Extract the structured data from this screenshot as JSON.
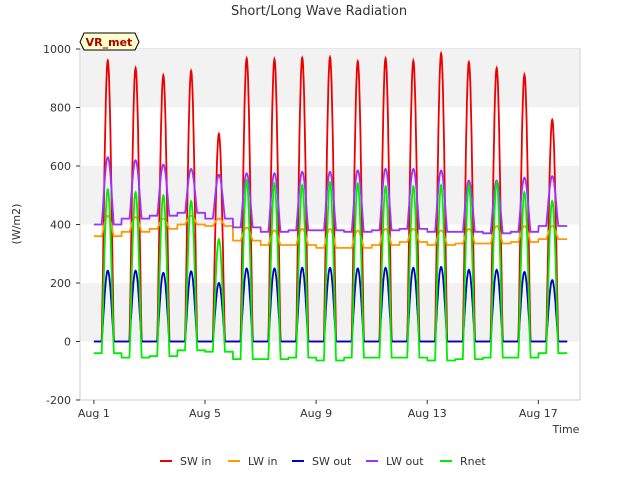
{
  "chart_data": {
    "type": "line",
    "title": "Short/Long Wave Radiation",
    "xlabel": "Time",
    "ylabel": "(W/m2)",
    "site_label": "VR_met",
    "xlim": [
      0.5,
      18.5
    ],
    "ylim": [
      -200,
      1000
    ],
    "yticks": [
      -200,
      0,
      200,
      400,
      600,
      800,
      1000
    ],
    "xticks": [
      {
        "day": 1,
        "label": "Aug 1"
      },
      {
        "day": 5,
        "label": "Aug 5"
      },
      {
        "day": 9,
        "label": "Aug 9"
      },
      {
        "day": 13,
        "label": "Aug 13"
      },
      {
        "day": 17,
        "label": "Aug 17"
      }
    ],
    "days": [
      1.2,
      2.2,
      3.2,
      4.2,
      5.2,
      6.2,
      7.2,
      8.2,
      9.2,
      10.2,
      11.2,
      12.2,
      13.2,
      14.2,
      15.2,
      16.2,
      17.2
    ],
    "series": [
      {
        "name": "SW in",
        "color": "#ee0000",
        "night": [
          0,
          0,
          0,
          0,
          0,
          0,
          0,
          0,
          0,
          0,
          0,
          0,
          0,
          0,
          0,
          0,
          0
        ],
        "peak": [
          960,
          935,
          910,
          925,
          710,
          968,
          965,
          970,
          972,
          958,
          968,
          960,
          985,
          955,
          935,
          912,
          758
        ]
      },
      {
        "name": "LW in",
        "color": "#ff9900",
        "night": [
          360,
          375,
          385,
          400,
          395,
          345,
          330,
          330,
          320,
          320,
          330,
          340,
          330,
          335,
          335,
          340,
          350
        ],
        "peak": [
          430,
          425,
          420,
          430,
          420,
          390,
          380,
          385,
          385,
          380,
          385,
          385,
          380,
          385,
          395,
          395,
          395
        ]
      },
      {
        "name": "SW out",
        "color": "#0000cc",
        "night": [
          0,
          0,
          0,
          0,
          0,
          0,
          0,
          0,
          0,
          0,
          0,
          0,
          0,
          0,
          0,
          0,
          0
        ],
        "peak": [
          242,
          242,
          235,
          240,
          200,
          250,
          250,
          252,
          252,
          250,
          252,
          252,
          255,
          245,
          245,
          238,
          210
        ]
      },
      {
        "name": "LW out",
        "color": "#9933ff",
        "night": [
          400,
          420,
          430,
          440,
          420,
          390,
          375,
          380,
          380,
          375,
          380,
          385,
          375,
          375,
          370,
          375,
          395
        ],
        "peak": [
          630,
          620,
          605,
          590,
          570,
          575,
          575,
          580,
          580,
          585,
          590,
          590,
          585,
          550,
          550,
          560,
          565
        ]
      },
      {
        "name": "Rnet",
        "color": "#00ee00",
        "night": [
          -40,
          -55,
          -50,
          -30,
          -35,
          -60,
          -60,
          -55,
          -65,
          -55,
          -55,
          -55,
          -65,
          -60,
          -55,
          -55,
          -40
        ],
        "peak": [
          520,
          510,
          500,
          480,
          350,
          550,
          540,
          535,
          545,
          540,
          530,
          530,
          535,
          535,
          545,
          510,
          480
        ]
      }
    ],
    "grid": true,
    "legend_position": "bottom"
  }
}
